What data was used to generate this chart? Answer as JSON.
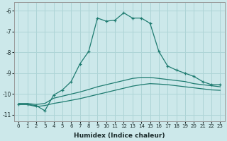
{
  "xlabel": "Humidex (Indice chaleur)",
  "ylabel": "",
  "bg_color": "#cce8ea",
  "grid_color": "#aed4d6",
  "line_color": "#1e7b70",
  "xlim": [
    -0.5,
    23.5
  ],
  "ylim": [
    -11.3,
    -5.6
  ],
  "yticks": [
    -11,
    -10,
    -9,
    -8,
    -7,
    -6
  ],
  "xticks": [
    0,
    1,
    2,
    3,
    4,
    5,
    6,
    7,
    8,
    9,
    10,
    11,
    12,
    13,
    14,
    15,
    16,
    17,
    18,
    19,
    20,
    21,
    22,
    23
  ],
  "line1_x": [
    0,
    1,
    2,
    3,
    4,
    5,
    6,
    7,
    8,
    9,
    10,
    11,
    12,
    13,
    14,
    15,
    16,
    17,
    18,
    19,
    20,
    21,
    22,
    23
  ],
  "line1_y": [
    -10.5,
    -10.5,
    -10.55,
    -10.8,
    -10.05,
    -9.8,
    -9.4,
    -8.55,
    -7.95,
    -6.35,
    -6.5,
    -6.45,
    -6.1,
    -6.35,
    -6.35,
    -6.6,
    -7.95,
    -8.65,
    -8.85,
    -9.0,
    -9.15,
    -9.4,
    -9.55,
    -9.55
  ],
  "line2_x": [
    0,
    1,
    2,
    3,
    4,
    5,
    6,
    7,
    8,
    9,
    10,
    11,
    12,
    13,
    14,
    15,
    16,
    17,
    18,
    19,
    20,
    21,
    22,
    23
  ],
  "line2_y": [
    -10.45,
    -10.45,
    -10.5,
    -10.45,
    -10.2,
    -10.1,
    -10.0,
    -9.9,
    -9.78,
    -9.65,
    -9.55,
    -9.45,
    -9.35,
    -9.25,
    -9.2,
    -9.2,
    -9.25,
    -9.3,
    -9.35,
    -9.4,
    -9.5,
    -9.55,
    -9.6,
    -9.65
  ],
  "line3_x": [
    0,
    1,
    2,
    3,
    4,
    5,
    6,
    7,
    8,
    9,
    10,
    11,
    12,
    13,
    14,
    15,
    16,
    17,
    18,
    19,
    20,
    21,
    22,
    23
  ],
  "line3_y": [
    -10.5,
    -10.5,
    -10.6,
    -10.55,
    -10.45,
    -10.38,
    -10.3,
    -10.22,
    -10.12,
    -10.02,
    -9.92,
    -9.82,
    -9.72,
    -9.62,
    -9.55,
    -9.5,
    -9.52,
    -9.55,
    -9.6,
    -9.65,
    -9.7,
    -9.75,
    -9.8,
    -9.82
  ]
}
